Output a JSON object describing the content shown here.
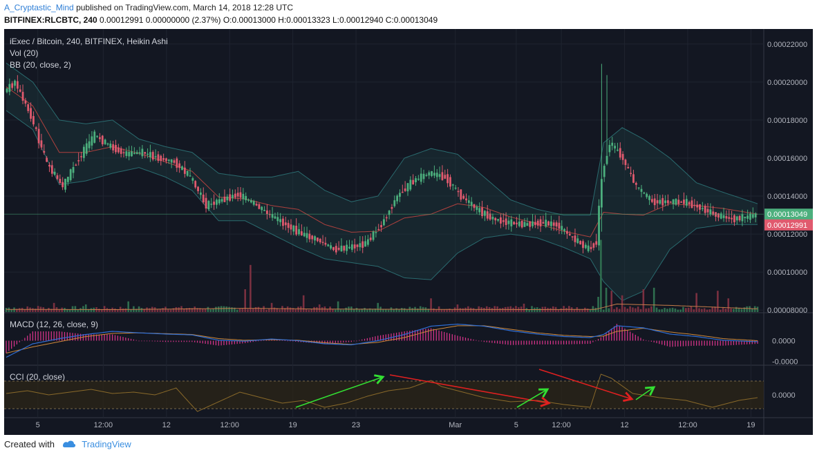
{
  "header": {
    "author": "A_Cryptastic_Mind",
    "published": "published on TradingView.com, March 14, 2018 12:28 UTC",
    "symbol": "BITFINEX:RLCBTC, 240",
    "ohlc": "0.00012991 0.00000000 (2.37%) O:0.00013000 H:0.00013323 L:0.00012940 C:0.00013049"
  },
  "legends": {
    "main": "iExec / Bitcoin, 240, BITFINEX, Heikin Ashi",
    "vol": "Vol (20)",
    "bb": "BB (20, close, 2)",
    "macd": "MACD (12, 26, close, 9)",
    "cci": "CCI (20, close)"
  },
  "footer": {
    "created_with": "Created with",
    "brand": "TradingView"
  },
  "colors": {
    "background": "#131722",
    "up": "#4caf7d",
    "down": "#e05a6e",
    "bb_band": "#2a6b6f",
    "bb_basis": "#b0413e",
    "macd_line": "#2f6fd6",
    "signal_line": "#d08a3a",
    "macd_hist": "#e0358f",
    "cci_line": "#8a6a2a",
    "arrow_green": "#33e033",
    "arrow_red": "#e02020"
  },
  "chart_data": {
    "type": "candlestick",
    "price_axis": {
      "ticks": [
        "0.00022000",
        "0.00020000",
        "0.00018000",
        "0.00016000",
        "0.00014000",
        "0.00012000",
        "0.00010000",
        "0.00008000"
      ],
      "ylim": [
        7.9e-05,
        0.000225
      ],
      "last_close": "0.00013049",
      "prev_label": "0.00012991"
    },
    "macd_axis": {
      "ticks": [
        "0.0000",
        "-0.0000"
      ]
    },
    "cci_axis": {
      "ticks": [
        "0.0000"
      ]
    },
    "time_axis": {
      "ticks": [
        "5",
        "12:00",
        "12",
        "12:00",
        "19",
        "23",
        "Mar",
        "5",
        "12:00",
        "12",
        "12:00",
        "19"
      ]
    },
    "close_path": [
      [
        0,
        0.000195
      ],
      [
        4,
        0.0002
      ],
      [
        10,
        0.000182
      ],
      [
        16,
        0.000157
      ],
      [
        22,
        0.000145
      ],
      [
        28,
        0.00016
      ],
      [
        34,
        0.000172
      ],
      [
        40,
        0.000166
      ],
      [
        46,
        0.000162
      ],
      [
        52,
        0.000163
      ],
      [
        58,
        0.00016
      ],
      [
        64,
        0.000158
      ],
      [
        70,
        0.00015
      ],
      [
        76,
        0.000135
      ],
      [
        82,
        0.000138
      ],
      [
        88,
        0.000141
      ],
      [
        94,
        0.000136
      ],
      [
        100,
        0.00013
      ],
      [
        106,
        0.000125
      ],
      [
        112,
        0.00012
      ],
      [
        118,
        0.000117
      ],
      [
        124,
        0.000112
      ],
      [
        130,
        0.000113
      ],
      [
        136,
        0.000115
      ],
      [
        142,
        0.000125
      ],
      [
        148,
        0.00014
      ],
      [
        154,
        0.000148
      ],
      [
        160,
        0.000152
      ],
      [
        166,
        0.00015
      ],
      [
        172,
        0.00014
      ],
      [
        178,
        0.000133
      ],
      [
        184,
        0.000128
      ],
      [
        190,
        0.000126
      ],
      [
        196,
        0.000125
      ],
      [
        202,
        0.000126
      ],
      [
        208,
        0.000125
      ],
      [
        214,
        0.000118
      ],
      [
        220,
        0.000112
      ],
      [
        223,
        0.000116
      ],
      [
        225,
        0.00015
      ],
      [
        228,
        0.000168
      ],
      [
        232,
        0.000162
      ],
      [
        238,
        0.000145
      ],
      [
        244,
        0.000137
      ],
      [
        250,
        0.000137
      ],
      [
        256,
        0.000137
      ],
      [
        262,
        0.000134
      ],
      [
        268,
        0.00013
      ],
      [
        274,
        0.000128
      ],
      [
        280,
        0.000129
      ],
      [
        283,
        0.00013
      ]
    ],
    "bb_upper": [
      [
        0,
        0.00021
      ],
      [
        10,
        0.0002
      ],
      [
        20,
        0.00018
      ],
      [
        30,
        0.000178
      ],
      [
        40,
        0.00018
      ],
      [
        50,
        0.00017
      ],
      [
        60,
        0.000166
      ],
      [
        70,
        0.000163
      ],
      [
        80,
        0.000152
      ],
      [
        90,
        0.00015
      ],
      [
        100,
        0.00015
      ],
      [
        110,
        0.000153
      ],
      [
        120,
        0.000143
      ],
      [
        130,
        0.000137
      ],
      [
        140,
        0.00014
      ],
      [
        150,
        0.00016
      ],
      [
        160,
        0.000165
      ],
      [
        170,
        0.000162
      ],
      [
        180,
        0.00015
      ],
      [
        190,
        0.000138
      ],
      [
        200,
        0.000133
      ],
      [
        210,
        0.00013
      ],
      [
        220,
        0.00013
      ],
      [
        225,
        0.000168
      ],
      [
        232,
        0.000176
      ],
      [
        240,
        0.00017
      ],
      [
        250,
        0.00016
      ],
      [
        260,
        0.000147
      ],
      [
        270,
        0.000142
      ],
      [
        283,
        0.000136
      ]
    ],
    "bb_lower": [
      [
        0,
        0.000185
      ],
      [
        10,
        0.000175
      ],
      [
        20,
        0.000146
      ],
      [
        30,
        0.000148
      ],
      [
        40,
        0.000152
      ],
      [
        50,
        0.000155
      ],
      [
        60,
        0.00015
      ],
      [
        70,
        0.000143
      ],
      [
        80,
        0.000127
      ],
      [
        90,
        0.000127
      ],
      [
        100,
        0.00012
      ],
      [
        110,
        0.000113
      ],
      [
        120,
        0.000107
      ],
      [
        130,
        0.000105
      ],
      [
        140,
        0.000103
      ],
      [
        150,
        9.7e-05
      ],
      [
        160,
        9.6e-05
      ],
      [
        170,
        0.00011
      ],
      [
        180,
        0.000118
      ],
      [
        190,
        0.00012
      ],
      [
        200,
        0.000118
      ],
      [
        210,
        0.000113
      ],
      [
        220,
        0.000107
      ],
      [
        225,
        9.5e-05
      ],
      [
        232,
        8.5e-05
      ],
      [
        240,
        9e-05
      ],
      [
        250,
        0.000112
      ],
      [
        260,
        0.000123
      ],
      [
        270,
        0.000125
      ],
      [
        283,
        0.000125
      ]
    ],
    "volume_spikes": [
      [
        3,
        0.06
      ],
      [
        12,
        0.08
      ],
      [
        18,
        0.12
      ],
      [
        30,
        0.1
      ],
      [
        46,
        0.14
      ],
      [
        60,
        0.07
      ],
      [
        90,
        0.3
      ],
      [
        92,
        0.62
      ],
      [
        100,
        0.12
      ],
      [
        112,
        0.22
      ],
      [
        118,
        0.1
      ],
      [
        125,
        0.14
      ],
      [
        140,
        0.12
      ],
      [
        160,
        0.18
      ],
      [
        170,
        0.1
      ],
      [
        195,
        0.11
      ],
      [
        210,
        0.08
      ],
      [
        223,
        0.2
      ],
      [
        224,
        0.95
      ],
      [
        226,
        0.32
      ],
      [
        228,
        0.28
      ],
      [
        232,
        0.22
      ],
      [
        240,
        0.3
      ],
      [
        244,
        0.32
      ],
      [
        260,
        0.25
      ],
      [
        268,
        0.28
      ],
      [
        272,
        0.18
      ]
    ],
    "macd_series": [
      [
        0,
        -0.8
      ],
      [
        10,
        -0.15
      ],
      [
        20,
        0.1
      ],
      [
        30,
        0.3
      ],
      [
        40,
        0.45
      ],
      [
        50,
        0.38
      ],
      [
        60,
        0.32
      ],
      [
        70,
        0.28
      ],
      [
        80,
        0.02
      ],
      [
        90,
        -0.02
      ],
      [
        100,
        0.08
      ],
      [
        110,
        0.0
      ],
      [
        120,
        -0.15
      ],
      [
        130,
        -0.2
      ],
      [
        140,
        0.0
      ],
      [
        150,
        0.3
      ],
      [
        160,
        0.7
      ],
      [
        170,
        0.8
      ],
      [
        180,
        0.7
      ],
      [
        190,
        0.48
      ],
      [
        200,
        0.32
      ],
      [
        210,
        0.2
      ],
      [
        220,
        0.15
      ],
      [
        225,
        0.3
      ],
      [
        230,
        0.72
      ],
      [
        240,
        0.62
      ],
      [
        250,
        0.32
      ],
      [
        260,
        0.2
      ],
      [
        270,
        0.02
      ],
      [
        283,
        -0.05
      ]
    ],
    "signal_series": [
      [
        0,
        -0.6
      ],
      [
        10,
        -0.3
      ],
      [
        20,
        -0.05
      ],
      [
        30,
        0.2
      ],
      [
        40,
        0.35
      ],
      [
        50,
        0.38
      ],
      [
        60,
        0.34
      ],
      [
        70,
        0.3
      ],
      [
        80,
        0.1
      ],
      [
        90,
        0.02
      ],
      [
        100,
        0.05
      ],
      [
        110,
        0.02
      ],
      [
        120,
        -0.1
      ],
      [
        130,
        -0.18
      ],
      [
        140,
        -0.08
      ],
      [
        150,
        0.15
      ],
      [
        160,
        0.5
      ],
      [
        170,
        0.72
      ],
      [
        180,
        0.72
      ],
      [
        190,
        0.55
      ],
      [
        200,
        0.38
      ],
      [
        210,
        0.26
      ],
      [
        220,
        0.2
      ],
      [
        225,
        0.22
      ],
      [
        230,
        0.45
      ],
      [
        240,
        0.6
      ],
      [
        250,
        0.42
      ],
      [
        260,
        0.28
      ],
      [
        270,
        0.1
      ],
      [
        283,
        0.0
      ]
    ],
    "cci_series": [
      [
        0,
        0.1
      ],
      [
        8,
        0.3
      ],
      [
        16,
        0.0
      ],
      [
        24,
        0.2
      ],
      [
        32,
        0.4
      ],
      [
        40,
        0.1
      ],
      [
        48,
        0.2
      ],
      [
        56,
        0.0
      ],
      [
        64,
        0.5
      ],
      [
        72,
        -1.2
      ],
      [
        80,
        -0.5
      ],
      [
        88,
        0.2
      ],
      [
        96,
        -0.2
      ],
      [
        104,
        -0.6
      ],
      [
        112,
        -0.4
      ],
      [
        120,
        -0.9
      ],
      [
        128,
        -0.6
      ],
      [
        136,
        -0.1
      ],
      [
        144,
        0.3
      ],
      [
        152,
        0.5
      ],
      [
        160,
        1.05
      ],
      [
        164,
        0.6
      ],
      [
        172,
        0.2
      ],
      [
        180,
        -0.2
      ],
      [
        190,
        -0.5
      ],
      [
        200,
        -0.4
      ],
      [
        210,
        -0.7
      ],
      [
        220,
        -0.9
      ],
      [
        224,
        1.5
      ],
      [
        228,
        1.2
      ],
      [
        236,
        0.1
      ],
      [
        246,
        -0.2
      ],
      [
        256,
        -0.4
      ],
      [
        266,
        -0.9
      ],
      [
        276,
        -0.4
      ],
      [
        283,
        -0.2
      ]
    ]
  }
}
